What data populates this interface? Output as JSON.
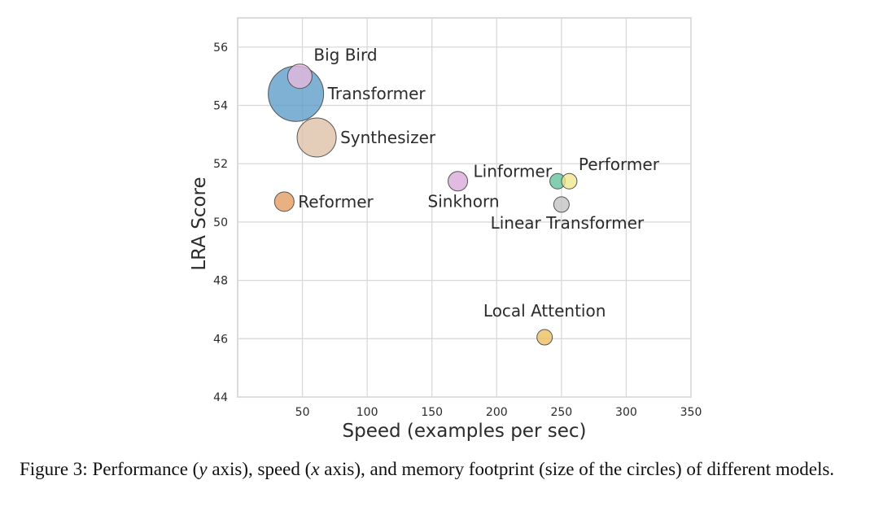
{
  "chart_data": {
    "type": "scatter",
    "title": "",
    "xlabel": "Speed (examples per sec)",
    "ylabel": "LRA Score",
    "xlim": [
      0,
      350
    ],
    "ylim": [
      44,
      57
    ],
    "x_ticks": [
      50,
      100,
      150,
      200,
      250,
      300,
      350
    ],
    "y_ticks": [
      44,
      46,
      48,
      50,
      52,
      54,
      56
    ],
    "grid": true,
    "points": [
      {
        "name": "Big Bird",
        "x": 48,
        "y": 55.0,
        "color": "#e7b9dd",
        "label_pos": "upper-right",
        "size": "medium"
      },
      {
        "name": "Transformer",
        "x": 45,
        "y": 54.4,
        "color": "#5b9bc9",
        "label_pos": "right",
        "size": "largest"
      },
      {
        "name": "Synthesizer",
        "x": 61,
        "y": 52.9,
        "color": "#dcc0a6",
        "label_pos": "right",
        "size": "large"
      },
      {
        "name": "Reformer",
        "x": 36,
        "y": 50.7,
        "color": "#e39a5e",
        "label_pos": "right",
        "size": "small"
      },
      {
        "name": "Sinkhorn",
        "x": 170,
        "y": 51.4,
        "color": "#d9a8d8",
        "label_pos": "below",
        "size": "small"
      },
      {
        "name": "Linformer",
        "x": 247,
        "y": 51.4,
        "color": "#5fc19b",
        "label_pos": "upper-left",
        "size": "tiny"
      },
      {
        "name": "Performer",
        "x": 256,
        "y": 51.4,
        "color": "#eee78a",
        "label_pos": "upper-right",
        "size": "tiny"
      },
      {
        "name": "Linear Transformer",
        "x": 250,
        "y": 50.6,
        "color": "#c2c2c2",
        "label_pos": "below",
        "size": "tiny"
      },
      {
        "name": "Local Attention",
        "x": 237,
        "y": 46.05,
        "color": "#ebbe5c",
        "label_pos": "above",
        "size": "tiny"
      }
    ]
  },
  "caption": {
    "prefix": "Figure 3: Performance (",
    "y_var": "y",
    "mid1": " axis), speed (",
    "x_var": "x",
    "rest": " axis), and memory footprint (size of the circles) of different models."
  }
}
